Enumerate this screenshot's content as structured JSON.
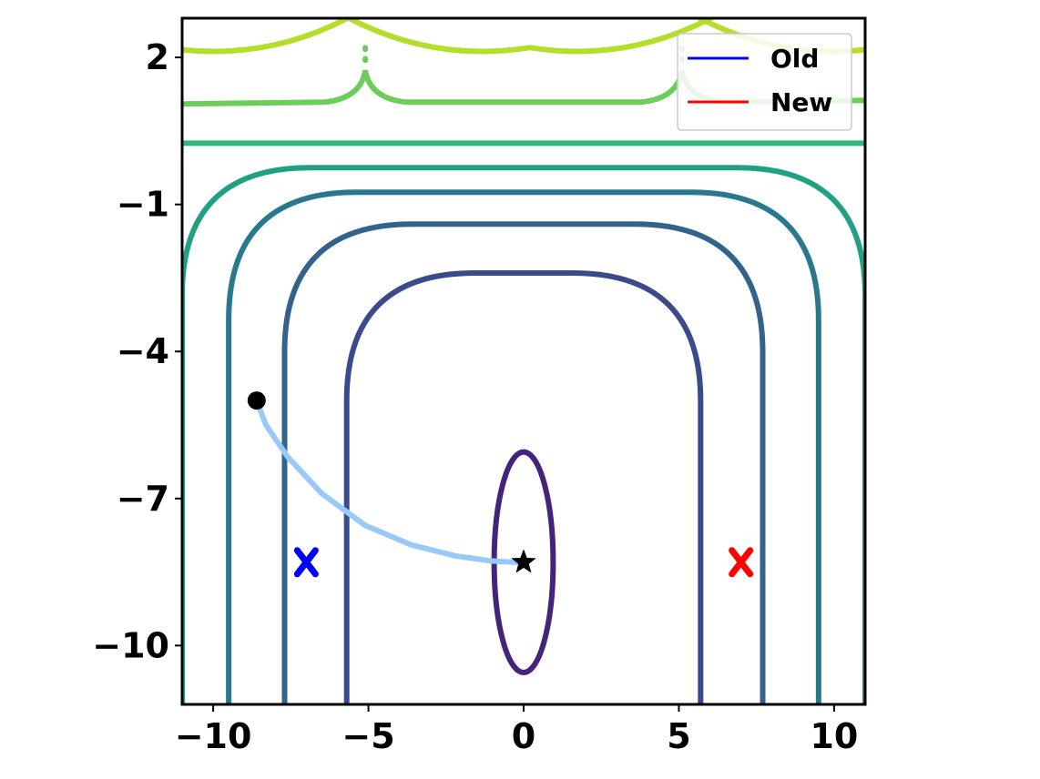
{
  "chart_data": {
    "type": "line",
    "subtype": "contour-with-trajectory",
    "title": "",
    "xlabel": "",
    "ylabel": "",
    "xlim": [
      -11,
      11
    ],
    "ylim": [
      -11.2,
      2.8
    ],
    "grid": false,
    "x_ticks": [
      -10,
      -5,
      0,
      5,
      10
    ],
    "x_tick_labels": [
      "−10",
      "−5",
      "0",
      "5",
      "10"
    ],
    "y_ticks": [
      2,
      -1,
      -4,
      -7,
      -10
    ],
    "y_tick_labels": [
      "2",
      "−1",
      "−4",
      "−7",
      "−10"
    ],
    "legend": {
      "placement": "top-right",
      "entries": [
        {
          "label": "Old",
          "color": "#0000ff"
        },
        {
          "label": "New",
          "color": "#ff0000"
        }
      ]
    },
    "contours": [
      {
        "shape": "ellipse",
        "color": "#45237a",
        "cx": 0,
        "cy": -8.3,
        "rx": 0.95,
        "ry": 2.25
      },
      {
        "shape": "u",
        "color": "#3b4a8a",
        "x_left": -5.7,
        "x_right": 5.7,
        "y_top": -2.4,
        "y_bottom": -11.2
      },
      {
        "shape": "u",
        "color": "#33638d",
        "x_left": -7.7,
        "x_right": 7.7,
        "y_top": -1.4,
        "y_bottom": -11.2
      },
      {
        "shape": "u",
        "color": "#2a788e",
        "x_left": -9.5,
        "x_right": 9.5,
        "y_top": -0.75,
        "y_bottom": -11.2
      },
      {
        "shape": "u",
        "color": "#22a085",
        "x_left": -11.0,
        "x_right": 11.0,
        "y_top": -0.25,
        "y_bottom": -11.2
      },
      {
        "shape": "hline",
        "color": "#35b779",
        "y": 0.25
      },
      {
        "shape": "band",
        "color": "#6ccd5a",
        "y": 1.05,
        "spikes_x": [
          -5.1,
          5.1
        ],
        "spike_top": 2.2
      },
      {
        "shape": "arcs",
        "color": "#b5de2b",
        "y_peak": 2.2,
        "x_centers": [
          -11.5,
          0.2,
          11.5
        ]
      }
    ],
    "trajectory": {
      "color": "#99c9f8",
      "x": [
        -8.6,
        -8.3,
        -7.6,
        -6.5,
        -5.1,
        -3.6,
        -2.2,
        -1.1,
        -0.3,
        0.0
      ],
      "y": [
        -5.0,
        -5.5,
        -6.15,
        -6.9,
        -7.55,
        -7.95,
        -8.17,
        -8.27,
        -8.3,
        -8.3
      ]
    },
    "start_point": {
      "x": -8.6,
      "y": -5.0,
      "marker": "circle",
      "color": "#000000"
    },
    "end_point": {
      "x": 0.0,
      "y": -8.3,
      "marker": "star",
      "color": "#000000"
    },
    "markers": [
      {
        "series": "Old",
        "x": -7.0,
        "y": -8.3,
        "marker": "X",
        "color": "#0000ff"
      },
      {
        "series": "New",
        "x": 7.0,
        "y": -8.3,
        "marker": "X",
        "color": "#ff0000"
      }
    ]
  }
}
